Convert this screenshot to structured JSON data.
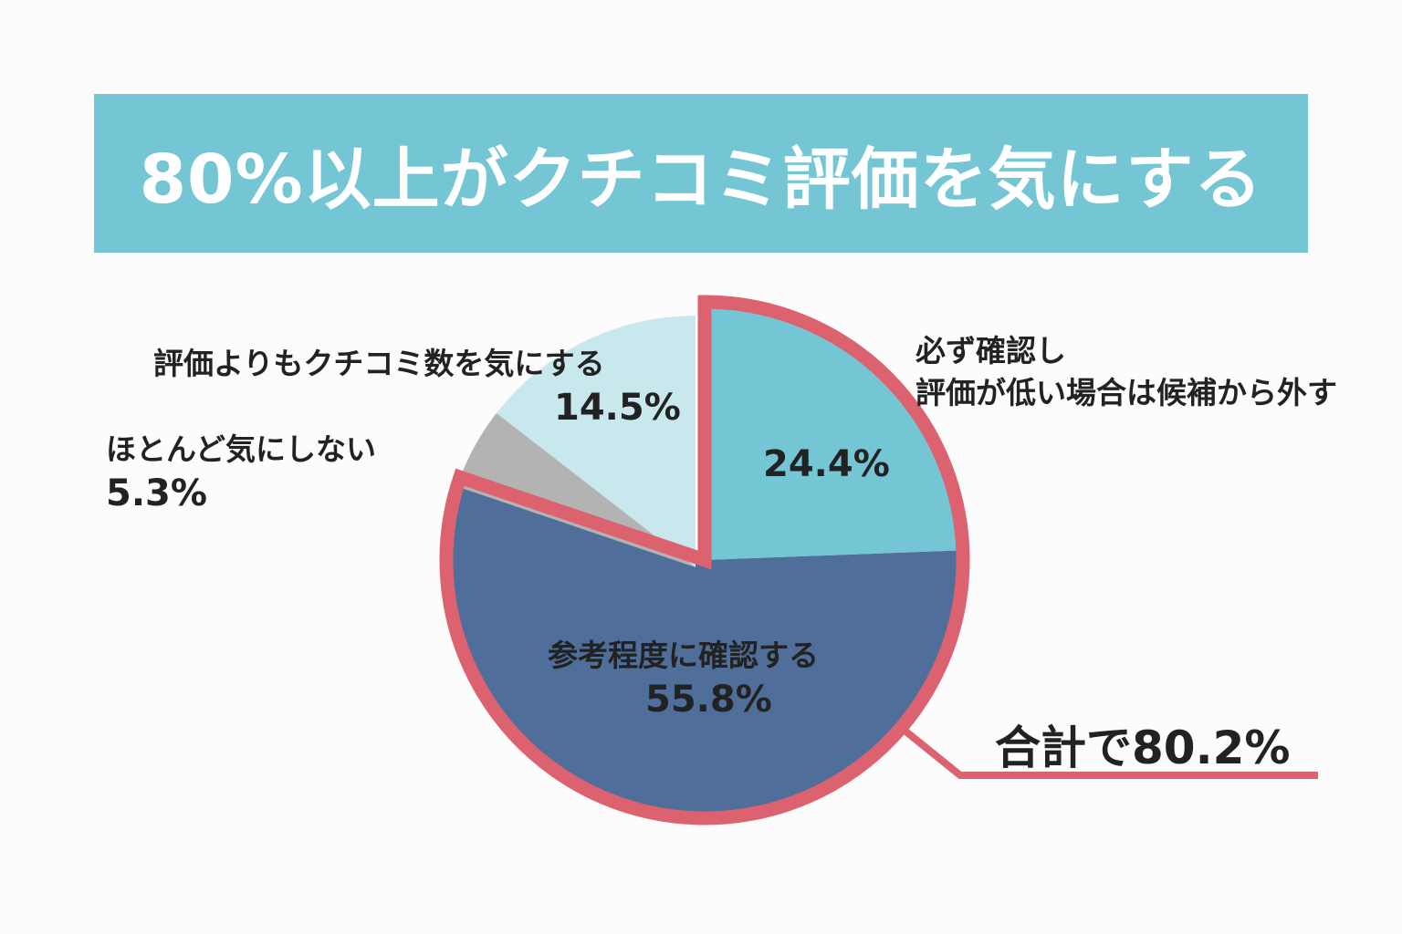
{
  "title": "80%以上がクチコミ評価を気にする",
  "chart_data": {
    "type": "pie",
    "title": "80%以上がクチコミ評価を気にする",
    "unit": "%",
    "slices": [
      {
        "label_lines": [
          "必ず確認し",
          "評価が低い場合は候補から外す"
        ],
        "value": 24.4,
        "value_label": "24.4%",
        "color": "#75c6d4",
        "highlighted": true
      },
      {
        "label_lines": [
          "参考程度に確認する"
        ],
        "value": 55.8,
        "value_label": "55.8%",
        "color": "#4f6e99",
        "highlighted": true
      },
      {
        "label_lines": [
          "ほとんど気にしない"
        ],
        "value": 5.3,
        "value_label": "5.3%",
        "color": "#b3b3b3",
        "highlighted": false
      },
      {
        "label_lines": [
          "評価よりもクチコミ数を気にする"
        ],
        "value": 14.5,
        "value_label": "14.5%",
        "color": "#c9e8ee",
        "highlighted": false
      }
    ],
    "highlight": {
      "label": "合計で80.2%",
      "color": "#dc6270"
    }
  }
}
